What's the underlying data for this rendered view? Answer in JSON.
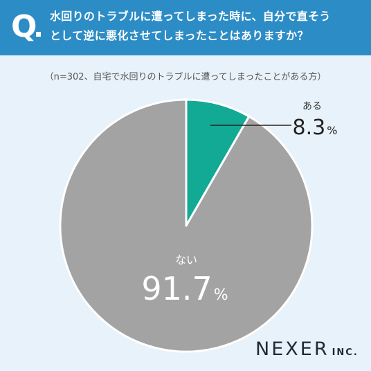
{
  "header": {
    "q_mark": "Q",
    "question_line1": "水回りのトラブルに遭ってしまった時に、自分で直そう",
    "question_line2": "として逆に悪化させてしまったことはありますか？"
  },
  "sample_note": "（n=302、自宅で水回りのトラブルに遭ってしまったことがある方）",
  "colors": {
    "header_bg": "#2c8cc6",
    "background": "#e8f2fa",
    "slice_yes": "#12a995",
    "slice_no": "#a3a3a3"
  },
  "chart_data": {
    "type": "pie",
    "title": "",
    "slices": [
      {
        "label": "ある",
        "value": 8.3,
        "display": "8.3",
        "unit": "%"
      },
      {
        "label": "ない",
        "value": 91.7,
        "display": "91.7",
        "unit": "%"
      }
    ]
  },
  "logo": {
    "main": "NEXER",
    "sub": "INC."
  }
}
